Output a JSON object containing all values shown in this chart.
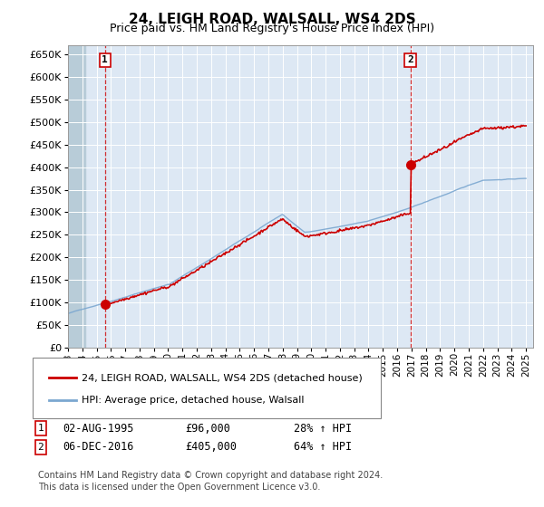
{
  "title": "24, LEIGH ROAD, WALSALL, WS4 2DS",
  "subtitle": "Price paid vs. HM Land Registry's House Price Index (HPI)",
  "ylim": [
    0,
    670000
  ],
  "yticks": [
    0,
    50000,
    100000,
    150000,
    200000,
    250000,
    300000,
    350000,
    400000,
    450000,
    500000,
    550000,
    600000,
    650000
  ],
  "xlim_start": 1993.0,
  "xlim_end": 2025.5,
  "plot_bg": "#dde8f4",
  "hpi_color": "#7ba7d0",
  "price_color": "#cc0000",
  "t1_x": 1995.58,
  "t1_y": 96000,
  "t2_x": 2016.92,
  "t2_y": 405000,
  "legend_label1": "24, LEIGH ROAD, WALSALL, WS4 2DS (detached house)",
  "legend_label2": "HPI: Average price, detached house, Walsall",
  "row1_date": "02-AUG-1995",
  "row1_price": "£96,000",
  "row1_pct": "28% ↑ HPI",
  "row2_date": "06-DEC-2016",
  "row2_price": "£405,000",
  "row2_pct": "64% ↑ HPI",
  "footnote1": "Contains HM Land Registry data © Crown copyright and database right 2024.",
  "footnote2": "This data is licensed under the Open Government Licence v3.0.",
  "xtick_years": [
    1993,
    1994,
    1995,
    1996,
    1997,
    1998,
    1999,
    2000,
    2001,
    2002,
    2003,
    2004,
    2005,
    2006,
    2007,
    2008,
    2009,
    2010,
    2011,
    2012,
    2013,
    2014,
    2015,
    2016,
    2017,
    2018,
    2019,
    2020,
    2021,
    2022,
    2023,
    2024,
    2025
  ]
}
